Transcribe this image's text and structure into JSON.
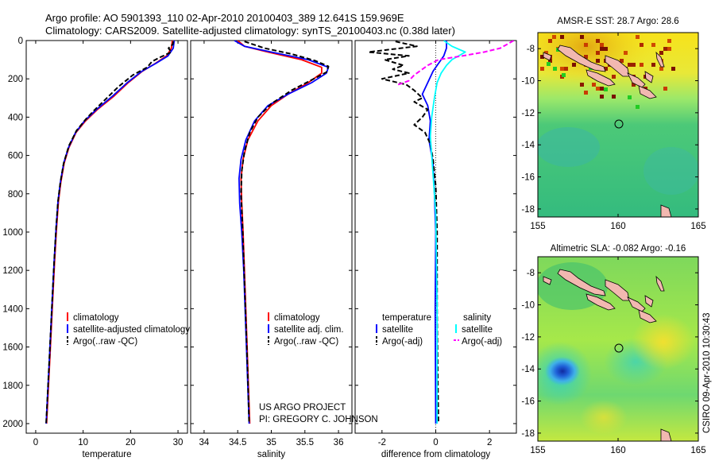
{
  "header": {
    "line1": "Argo profile: AO 5901393_110 02-Apr-2010 20100403_389 12.641S 159.969E",
    "line2": "Climatology: CARS2009. Satellite-adjusted climatology: synTS_20100403.nc (0.38d later)"
  },
  "colors": {
    "climatology": "#ff0000",
    "satellite": "#0000ff",
    "argo": "#000000",
    "satellite_salinity": "#00ffff",
    "argo_salinity_adj": "#ff00ff",
    "land": "#f2b8b0"
  },
  "annotations": {
    "project": "US ARGO PROJECT",
    "pi": "PI: GREGORY C. JOHNSON",
    "timestamp": "CSIRO 09-Apr-2010 10:30:43"
  },
  "chart_data": [
    {
      "id": "temperature",
      "type": "line",
      "xlabel": "temperature",
      "xlim": [
        -2,
        32
      ],
      "xticks": [
        0,
        10,
        20,
        30
      ],
      "ylim": [
        2050,
        0
      ],
      "yticks": [
        0,
        200,
        400,
        600,
        800,
        1000,
        1200,
        1400,
        1600,
        1800,
        2000
      ],
      "legend": [
        "climatology",
        "satellite-adjusted climatology",
        "Argo(..raw -QC)"
      ],
      "legend_loc": "lower-center",
      "series": [
        {
          "name": "climatology",
          "color": "#ff0000",
          "points": [
            [
              28.8,
              0
            ],
            [
              28.6,
              40
            ],
            [
              27.6,
              80
            ],
            [
              25.2,
              120
            ],
            [
              22.5,
              160
            ],
            [
              19.5,
              220
            ],
            [
              16.5,
              290
            ],
            [
              13.0,
              360
            ],
            [
              10.5,
              420
            ],
            [
              8.5,
              480
            ],
            [
              7.0,
              560
            ],
            [
              6.0,
              640
            ],
            [
              5.3,
              740
            ],
            [
              4.8,
              840
            ],
            [
              4.4,
              980
            ],
            [
              4.0,
              1150
            ],
            [
              3.5,
              1400
            ],
            [
              3.0,
              1650
            ],
            [
              2.6,
              1850
            ],
            [
              2.3,
              2000
            ]
          ]
        },
        {
          "name": "satellite-adjusted climatology",
          "color": "#0000ff",
          "points": [
            [
              29.2,
              0
            ],
            [
              29.0,
              40
            ],
            [
              27.9,
              80
            ],
            [
              25.3,
              120
            ],
            [
              22.4,
              160
            ],
            [
              19.3,
              220
            ],
            [
              16.2,
              290
            ],
            [
              12.8,
              360
            ],
            [
              10.3,
              420
            ],
            [
              8.4,
              480
            ],
            [
              6.9,
              560
            ],
            [
              5.9,
              640
            ],
            [
              5.2,
              740
            ],
            [
              4.7,
              840
            ],
            [
              4.3,
              980
            ],
            [
              3.9,
              1150
            ],
            [
              3.4,
              1400
            ],
            [
              2.9,
              1650
            ],
            [
              2.5,
              1850
            ],
            [
              2.2,
              2000
            ]
          ]
        },
        {
          "name": "Argo(..raw -QC)",
          "color": "#000000",
          "points": [
            [
              29.0,
              5
            ],
            [
              28.9,
              20
            ],
            [
              28.0,
              40
            ],
            [
              28.6,
              60
            ],
            [
              26.0,
              90
            ],
            [
              24.5,
              110
            ],
            [
              23.5,
              140
            ],
            [
              20.5,
              180
            ],
            [
              17.5,
              240
            ],
            [
              15.0,
              300
            ],
            [
              12.5,
              360
            ],
            [
              10.6,
              410
            ],
            [
              8.6,
              470
            ],
            [
              7.0,
              550
            ],
            [
              5.9,
              640
            ],
            [
              5.2,
              740
            ],
            [
              4.7,
              840
            ],
            [
              4.3,
              980
            ],
            [
              3.9,
              1150
            ],
            [
              3.4,
              1400
            ],
            [
              2.9,
              1650
            ],
            [
              2.5,
              1850
            ],
            [
              2.2,
              2000
            ]
          ]
        }
      ]
    },
    {
      "id": "salinity",
      "type": "line",
      "xlabel": "salinity",
      "xlim": [
        33.8,
        36.2
      ],
      "xticks": [
        34,
        34.5,
        35,
        35.5,
        36
      ],
      "xtick_labels": [
        "34",
        "34.5",
        "35",
        "35.5",
        "36"
      ],
      "ylim": [
        2050,
        0
      ],
      "yticks": [
        0,
        200,
        400,
        600,
        800,
        1000,
        1200,
        1400,
        1600,
        1800,
        2000
      ],
      "legend": [
        "climatology",
        "satellite adj. clim.",
        "Argo(..raw -QC)"
      ],
      "legend_loc": "lower-center",
      "series": [
        {
          "name": "climatology",
          "color": "#ff0000",
          "points": [
            [
              34.5,
              0
            ],
            [
              34.6,
              30
            ],
            [
              34.95,
              60
            ],
            [
              35.45,
              100
            ],
            [
              35.75,
              140
            ],
            [
              35.75,
              170
            ],
            [
              35.55,
              220
            ],
            [
              35.25,
              280
            ],
            [
              35.0,
              340
            ],
            [
              34.8,
              420
            ],
            [
              34.65,
              520
            ],
            [
              34.58,
              620
            ],
            [
              34.55,
              720
            ],
            [
              34.56,
              850
            ],
            [
              34.58,
              1000
            ],
            [
              34.6,
              1200
            ],
            [
              34.62,
              1400
            ],
            [
              34.64,
              1600
            ],
            [
              34.66,
              1800
            ],
            [
              34.68,
              2000
            ]
          ]
        },
        {
          "name": "satellite adj. clim.",
          "color": "#0000ff",
          "points": [
            [
              34.45,
              0
            ],
            [
              34.6,
              30
            ],
            [
              35.0,
              60
            ],
            [
              35.55,
              100
            ],
            [
              35.85,
              140
            ],
            [
              35.82,
              170
            ],
            [
              35.6,
              220
            ],
            [
              35.25,
              280
            ],
            [
              34.95,
              340
            ],
            [
              34.75,
              420
            ],
            [
              34.62,
              520
            ],
            [
              34.55,
              620
            ],
            [
              34.52,
              720
            ],
            [
              34.53,
              850
            ],
            [
              34.56,
              1000
            ],
            [
              34.59,
              1200
            ],
            [
              34.61,
              1400
            ],
            [
              34.63,
              1600
            ],
            [
              34.65,
              1800
            ],
            [
              34.67,
              2000
            ]
          ]
        },
        {
          "name": "Argo(..raw -QC)",
          "color": "#000000",
          "points": [
            [
              34.6,
              5
            ],
            [
              34.9,
              40
            ],
            [
              35.3,
              70
            ],
            [
              35.65,
              105
            ],
            [
              35.85,
              135
            ],
            [
              35.82,
              165
            ],
            [
              35.55,
              215
            ],
            [
              35.3,
              260
            ],
            [
              35.0,
              330
            ],
            [
              34.8,
              400
            ],
            [
              34.68,
              480
            ],
            [
              34.6,
              580
            ],
            [
              34.56,
              680
            ],
            [
              34.55,
              800
            ],
            [
              34.57,
              950
            ],
            [
              34.59,
              1150
            ],
            [
              34.61,
              1350
            ],
            [
              34.63,
              1550
            ],
            [
              34.65,
              1750
            ],
            [
              34.67,
              2000
            ]
          ]
        }
      ]
    },
    {
      "id": "difference",
      "type": "line",
      "xlabel": "difference from climatology",
      "xlim": [
        -3,
        3
      ],
      "xticks": [
        -2,
        0,
        2
      ],
      "ylim": [
        2050,
        0
      ],
      "yticks": [
        0,
        200,
        400,
        600,
        800,
        1000,
        1200,
        1400,
        1600,
        1800,
        2000
      ],
      "reference_x": 0,
      "legend_headers": [
        "temperature",
        "salinity"
      ],
      "legend": [
        "satellite",
        "Argo(-adj)",
        "satellite",
        "Argo(-adj)"
      ],
      "legend_loc": "lower-center",
      "series": [
        {
          "name": "temperature satellite",
          "color": "#0000ff",
          "points": [
            [
              0.4,
              0
            ],
            [
              0.4,
              40
            ],
            [
              0.3,
              80
            ],
            [
              0.1,
              120
            ],
            [
              -0.1,
              160
            ],
            [
              -0.3,
              220
            ],
            [
              -0.5,
              280
            ],
            [
              -0.3,
              340
            ],
            [
              -0.2,
              420
            ],
            [
              -0.25,
              520
            ],
            [
              -0.1,
              640
            ],
            [
              -0.05,
              800
            ],
            [
              0.0,
              1000
            ],
            [
              -0.02,
              1400
            ],
            [
              0.0,
              2000
            ]
          ]
        },
        {
          "name": "temperature Argo(-adj)",
          "color": "#000000",
          "points": [
            [
              -1.5,
              5
            ],
            [
              -0.7,
              30
            ],
            [
              -2.5,
              60
            ],
            [
              -1.0,
              80
            ],
            [
              -1.9,
              100
            ],
            [
              -1.2,
              130
            ],
            [
              -1.6,
              150
            ],
            [
              -1.0,
              170
            ],
            [
              -2.0,
              200
            ],
            [
              -1.1,
              230
            ],
            [
              -0.8,
              260
            ],
            [
              -0.5,
              300
            ],
            [
              -0.8,
              320
            ],
            [
              -0.3,
              360
            ],
            [
              -0.5,
              400
            ],
            [
              -0.8,
              440
            ],
            [
              -0.4,
              480
            ],
            [
              -0.2,
              540
            ],
            [
              -0.1,
              620
            ],
            [
              0.0,
              760
            ],
            [
              0.05,
              1000
            ],
            [
              0.05,
              1400
            ],
            [
              0.08,
              1800
            ],
            [
              0.1,
              2000
            ]
          ]
        },
        {
          "name": "salinity satellite",
          "color": "#00ffff",
          "points": [
            [
              0.3,
              0
            ],
            [
              0.6,
              30
            ],
            [
              1.1,
              60
            ],
            [
              0.6,
              100
            ],
            [
              0.4,
              130
            ],
            [
              0.2,
              170
            ],
            [
              0.05,
              220
            ],
            [
              -0.05,
              300
            ],
            [
              -0.15,
              400
            ],
            [
              -0.2,
              500
            ],
            [
              -0.1,
              700
            ],
            [
              0.0,
              900
            ],
            [
              0.02,
              1100
            ],
            [
              0.05,
              1400
            ],
            [
              0.05,
              2000
            ]
          ]
        },
        {
          "name": "salinity Argo(-adj)",
          "color": "#ff00ff",
          "points": [
            [
              2.9,
              0
            ],
            [
              2.4,
              40
            ],
            [
              1.8,
              60
            ],
            [
              1.0,
              80
            ],
            [
              0.1,
              100
            ],
            [
              -0.3,
              130
            ],
            [
              -0.6,
              160
            ],
            [
              -0.8,
              180
            ],
            [
              -1.0,
              210
            ],
            [
              -1.4,
              230
            ]
          ]
        }
      ]
    },
    {
      "id": "sst_map",
      "type": "heatmap",
      "title": "AMSR-E SST: 28.7 Argo: 28.6",
      "xlim": [
        155,
        165
      ],
      "xticks": [
        155,
        160,
        165
      ],
      "ylim": [
        -18.5,
        -7
      ],
      "yticks": [
        -8,
        -10,
        -12,
        -14,
        -16,
        -18
      ],
      "argo_location": [
        159.97,
        -12.64
      ]
    },
    {
      "id": "sla_map",
      "type": "heatmap",
      "title": "Altimetric SLA: -0.082 Argo: -0.16",
      "xlim": [
        155,
        165
      ],
      "xticks": [
        155,
        160,
        165
      ],
      "ylim": [
        -18.5,
        -7
      ],
      "yticks": [
        -8,
        -10,
        -12,
        -14,
        -16,
        -18
      ],
      "argo_location": [
        159.97,
        -12.64
      ]
    }
  ]
}
